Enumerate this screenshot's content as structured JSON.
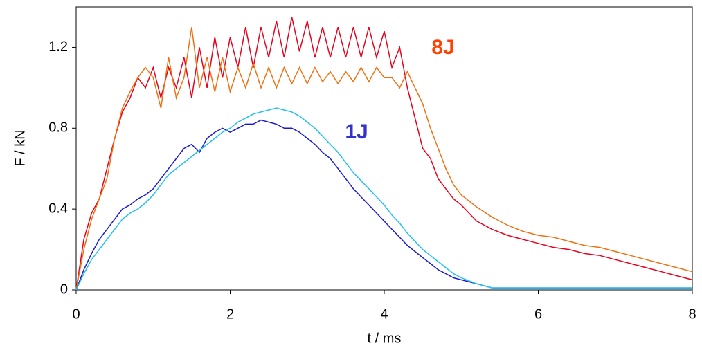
{
  "chart_data": {
    "type": "line",
    "x_label": "t / ms",
    "y_label": "F / kN",
    "x": [
      0,
      0.1,
      0.2,
      0.3,
      0.4,
      0.5,
      0.6,
      0.7,
      0.8,
      0.9,
      1.0,
      1.1,
      1.2,
      1.3,
      1.4,
      1.5,
      1.6,
      1.7,
      1.8,
      1.9,
      2.0,
      2.1,
      2.2,
      2.3,
      2.4,
      2.5,
      2.6,
      2.7,
      2.8,
      2.9,
      3.0,
      3.1,
      3.2,
      3.3,
      3.4,
      3.5,
      3.6,
      3.7,
      3.8,
      3.9,
      4.0,
      4.1,
      4.2,
      4.3,
      4.4,
      4.5,
      4.6,
      4.7,
      4.8,
      4.9,
      5.0,
      5.2,
      5.4,
      5.6,
      5.8,
      6.0,
      6.2,
      6.4,
      6.6,
      6.8,
      7.0,
      7.2,
      7.4,
      7.6,
      7.8,
      8.0
    ],
    "series": [
      {
        "color": "#e8001c",
        "values": [
          0,
          0.25,
          0.38,
          0.45,
          0.6,
          0.75,
          0.88,
          0.95,
          1.05,
          1.0,
          1.1,
          0.95,
          1.1,
          1.0,
          1.15,
          0.95,
          1.2,
          1.0,
          1.25,
          1.05,
          1.25,
          1.1,
          1.3,
          1.1,
          1.3,
          1.15,
          1.33,
          1.15,
          1.35,
          1.18,
          1.33,
          1.15,
          1.3,
          1.15,
          1.3,
          1.15,
          1.3,
          1.15,
          1.3,
          1.15,
          1.28,
          1.1,
          1.2,
          1.0,
          0.85,
          0.7,
          0.65,
          0.55,
          0.5,
          0.45,
          0.42,
          0.34,
          0.3,
          0.27,
          0.25,
          0.23,
          0.21,
          0.2,
          0.18,
          0.17,
          0.15,
          0.13,
          0.11,
          0.09,
          0.07,
          0.05
        ]
      },
      {
        "color": "#f07010",
        "values": [
          0,
          0.2,
          0.35,
          0.45,
          0.55,
          0.75,
          0.9,
          0.98,
          1.05,
          1.1,
          1.05,
          0.9,
          1.15,
          0.95,
          1.05,
          1.3,
          1.0,
          1.15,
          0.98,
          1.15,
          0.98,
          1.1,
          1.0,
          1.12,
          1.0,
          1.1,
          1.0,
          1.1,
          1.02,
          1.1,
          1.02,
          1.1,
          1.03,
          1.08,
          1.02,
          1.08,
          1.03,
          1.1,
          1.03,
          1.1,
          1.05,
          1.05,
          1.0,
          1.08,
          1.0,
          0.92,
          0.8,
          0.7,
          0.6,
          0.52,
          0.47,
          0.41,
          0.36,
          0.32,
          0.29,
          0.27,
          0.26,
          0.24,
          0.22,
          0.21,
          0.19,
          0.17,
          0.15,
          0.13,
          0.11,
          0.09
        ]
      },
      {
        "color": "#1a1acc",
        "values": [
          0,
          0.1,
          0.18,
          0.25,
          0.3,
          0.35,
          0.4,
          0.42,
          0.45,
          0.47,
          0.5,
          0.55,
          0.6,
          0.65,
          0.7,
          0.72,
          0.68,
          0.75,
          0.78,
          0.8,
          0.78,
          0.8,
          0.82,
          0.82,
          0.84,
          0.83,
          0.82,
          0.8,
          0.8,
          0.78,
          0.75,
          0.72,
          0.68,
          0.65,
          0.6,
          0.55,
          0.5,
          0.46,
          0.42,
          0.38,
          0.34,
          0.3,
          0.26,
          0.22,
          0.19,
          0.16,
          0.13,
          0.1,
          0.08,
          0.06,
          0.05,
          0.03,
          0.01,
          0.01,
          0.01,
          0.01,
          0.01,
          0.01,
          0.01,
          0.01,
          0.01,
          0.01,
          0.01,
          0.01,
          0.01,
          0.01
        ]
      },
      {
        "color": "#1ec0f0",
        "values": [
          0,
          0.08,
          0.15,
          0.2,
          0.25,
          0.3,
          0.35,
          0.38,
          0.4,
          0.43,
          0.47,
          0.52,
          0.57,
          0.6,
          0.63,
          0.66,
          0.69,
          0.72,
          0.75,
          0.78,
          0.8,
          0.83,
          0.85,
          0.87,
          0.88,
          0.89,
          0.9,
          0.89,
          0.88,
          0.86,
          0.83,
          0.8,
          0.76,
          0.72,
          0.68,
          0.63,
          0.58,
          0.54,
          0.5,
          0.46,
          0.42,
          0.37,
          0.33,
          0.28,
          0.24,
          0.2,
          0.17,
          0.14,
          0.11,
          0.08,
          0.06,
          0.03,
          0.01,
          0.01,
          0.01,
          0.01,
          0.01,
          0.01,
          0.01,
          0.01,
          0.01,
          0.01,
          0.01,
          0.01,
          0.01,
          0.01
        ]
      }
    ],
    "annotations": [
      {
        "text": "8J",
        "color": "#ff4000"
      },
      {
        "text": "1J",
        "color": "#3333cc"
      }
    ],
    "xlim": [
      0,
      8
    ],
    "xticks": [
      0,
      2,
      4,
      6,
      8
    ],
    "ylim": [
      0,
      1.4
    ],
    "yticks": [
      0,
      0.4,
      0.8,
      1.2
    ],
    "grid": false
  }
}
